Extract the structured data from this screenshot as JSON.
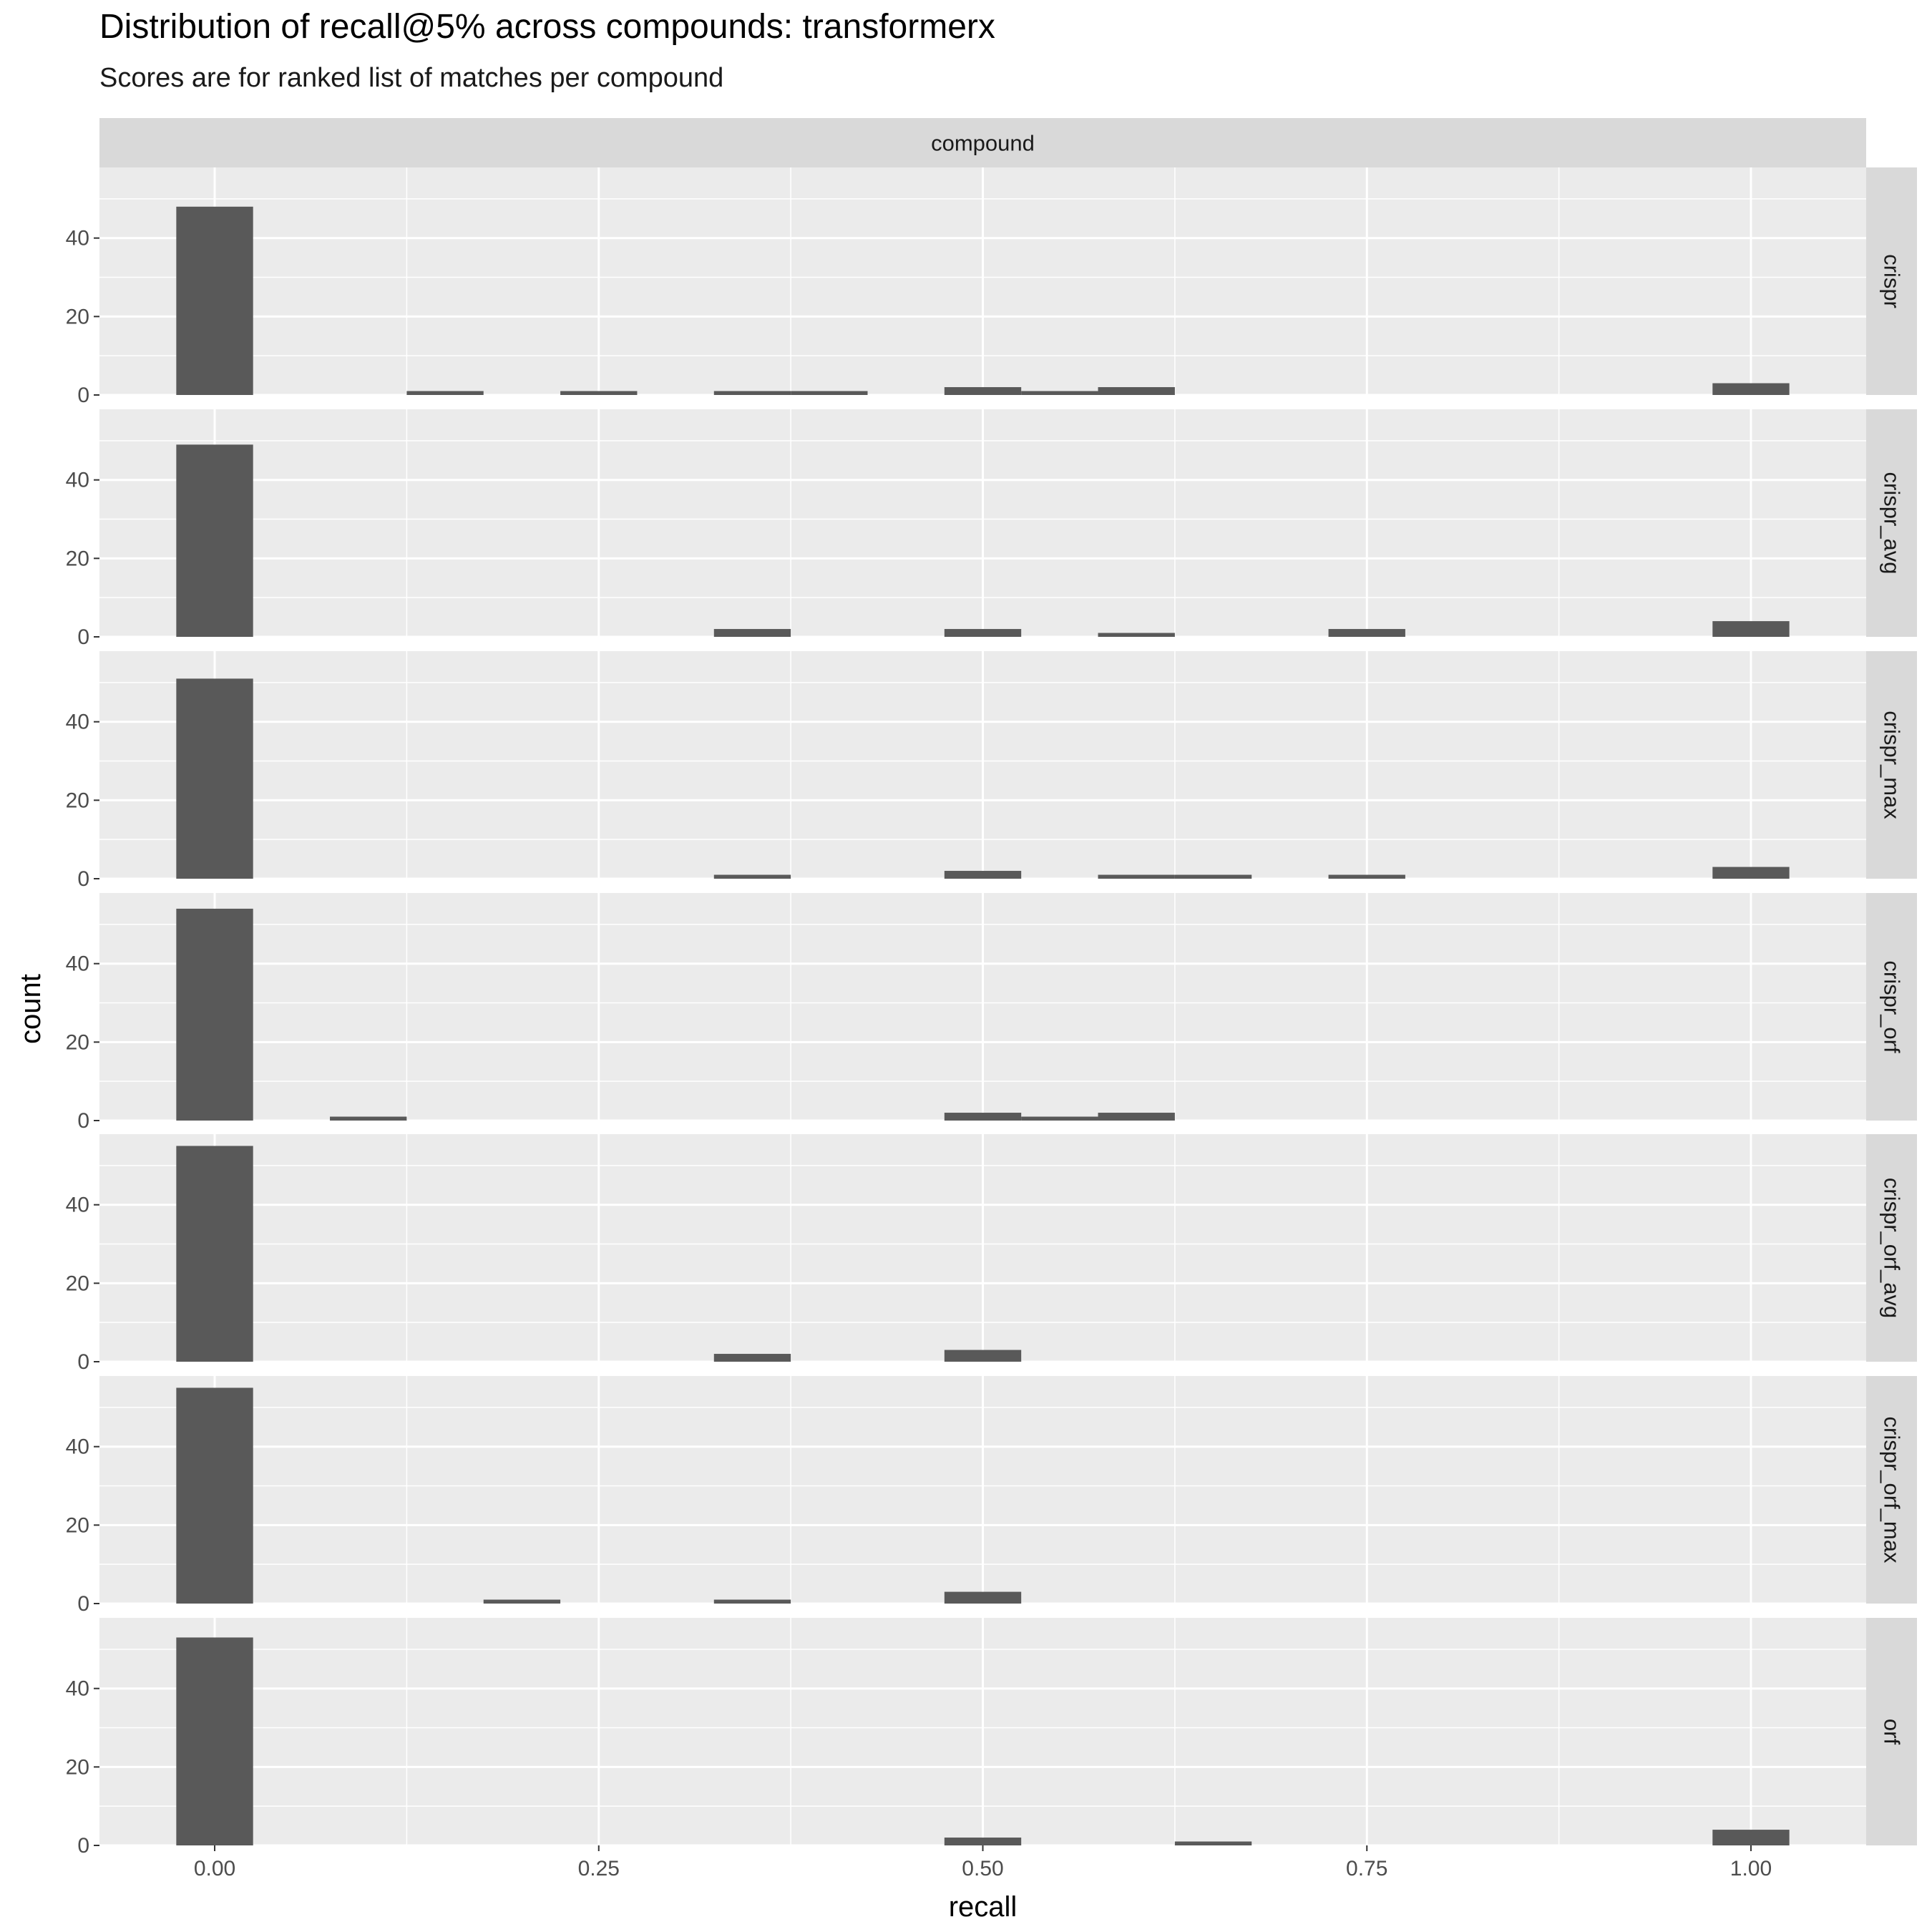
{
  "title": "Distribution of recall@5% across compounds: transformerx",
  "subtitle": "Scores are for ranked list of matches per compound",
  "chart_data": {
    "type": "bar",
    "chart_kind": "faceted histogram",
    "xlabel": "recall",
    "ylabel": "count",
    "column_strip": "compound",
    "xlim": [
      -0.075,
      1.075
    ],
    "ylim": [
      0,
      55
    ],
    "x_ticks": [
      0.0,
      0.25,
      0.5,
      0.75,
      1.0
    ],
    "x_tick_labels": [
      "0.00",
      "0.25",
      "0.50",
      "0.75",
      "1.00"
    ],
    "y_ticks": [
      0,
      20,
      40
    ],
    "y_tick_labels": [
      "0",
      "20",
      "40"
    ],
    "bin_width": 0.05,
    "grid": true,
    "bar_color": "#595959",
    "panel_background": "#ebebeb",
    "strip_background": "#d9d9d9",
    "panels": [
      {
        "label": "crispr",
        "bins": [
          {
            "x": 0.0,
            "count": 48
          },
          {
            "x": 0.15,
            "count": 1
          },
          {
            "x": 0.25,
            "count": 1
          },
          {
            "x": 0.35,
            "count": 1
          },
          {
            "x": 0.4,
            "count": 1
          },
          {
            "x": 0.5,
            "count": 2
          },
          {
            "x": 0.55,
            "count": 1
          },
          {
            "x": 0.6,
            "count": 2
          },
          {
            "x": 1.0,
            "count": 3
          }
        ]
      },
      {
        "label": "crispr_avg",
        "bins": [
          {
            "x": 0.0,
            "count": 49
          },
          {
            "x": 0.35,
            "count": 2
          },
          {
            "x": 0.5,
            "count": 2
          },
          {
            "x": 0.6,
            "count": 1
          },
          {
            "x": 0.75,
            "count": 2
          },
          {
            "x": 1.0,
            "count": 4
          }
        ]
      },
      {
        "label": "crispr_max",
        "bins": [
          {
            "x": 0.0,
            "count": 51
          },
          {
            "x": 0.35,
            "count": 1
          },
          {
            "x": 0.5,
            "count": 2
          },
          {
            "x": 0.6,
            "count": 1
          },
          {
            "x": 0.65,
            "count": 1
          },
          {
            "x": 0.75,
            "count": 1
          },
          {
            "x": 1.0,
            "count": 3
          }
        ]
      },
      {
        "label": "crispr_orf",
        "bins": [
          {
            "x": 0.0,
            "count": 54
          },
          {
            "x": 0.1,
            "count": 1
          },
          {
            "x": 0.5,
            "count": 2
          },
          {
            "x": 0.55,
            "count": 1
          },
          {
            "x": 0.6,
            "count": 2
          }
        ]
      },
      {
        "label": "crispr_orf_avg",
        "bins": [
          {
            "x": 0.0,
            "count": 55
          },
          {
            "x": 0.35,
            "count": 2
          },
          {
            "x": 0.5,
            "count": 3
          }
        ]
      },
      {
        "label": "crispr_orf_max",
        "bins": [
          {
            "x": 0.0,
            "count": 55
          },
          {
            "x": 0.2,
            "count": 1
          },
          {
            "x": 0.35,
            "count": 1
          },
          {
            "x": 0.5,
            "count": 3
          }
        ]
      },
      {
        "label": "orf",
        "bins": [
          {
            "x": 0.0,
            "count": 53
          },
          {
            "x": 0.5,
            "count": 2
          },
          {
            "x": 0.65,
            "count": 1
          },
          {
            "x": 1.0,
            "count": 4
          }
        ]
      }
    ]
  }
}
